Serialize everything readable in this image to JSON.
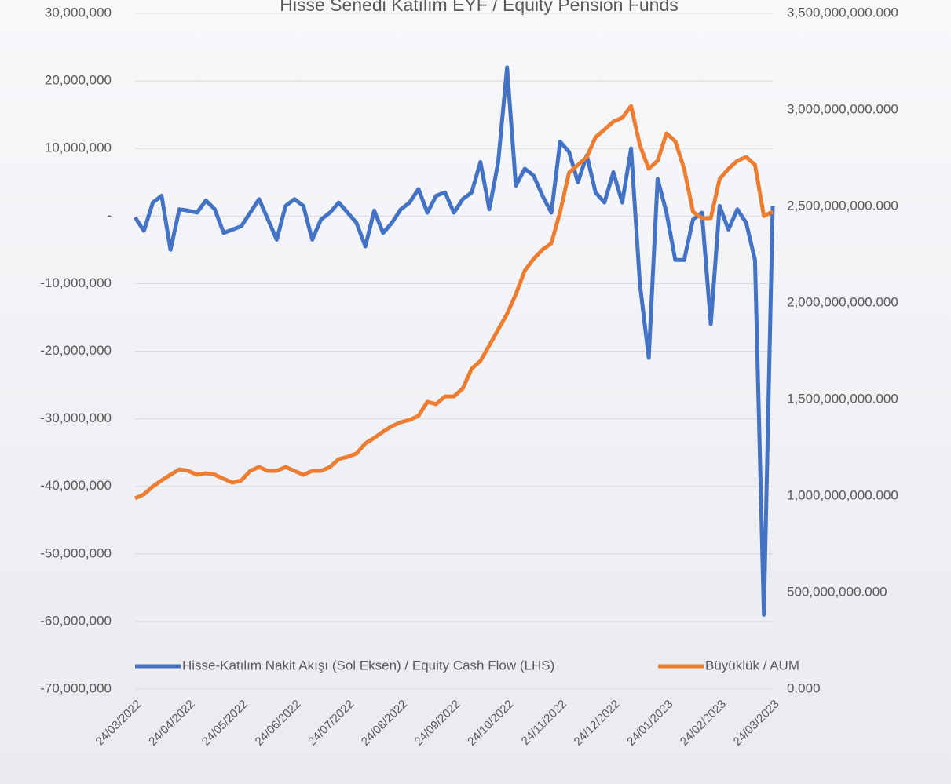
{
  "chart_data": {
    "type": "line",
    "title": "Hisse Senedi Katılım EYF / Equity Pension Funds",
    "categories": [
      "24/03/2022",
      null,
      null,
      null,
      null,
      null,
      "24/04/2022",
      null,
      null,
      null,
      null,
      null,
      "24/05/2022",
      null,
      null,
      null,
      null,
      null,
      "24/06/2022",
      null,
      null,
      null,
      null,
      null,
      "24/07/2022",
      null,
      null,
      null,
      null,
      null,
      "24/08/2022",
      null,
      null,
      null,
      null,
      null,
      "24/09/2022",
      null,
      null,
      null,
      null,
      null,
      "24/10/2022",
      null,
      null,
      null,
      null,
      null,
      "24/11/2022",
      null,
      null,
      null,
      null,
      null,
      "24/12/2022",
      null,
      null,
      null,
      null,
      null,
      "24/01/2023",
      null,
      null,
      null,
      null,
      null,
      "24/02/2023",
      null,
      null,
      null,
      null,
      null,
      "24/03/2023"
    ],
    "series": [
      {
        "name": "Hisse-Katılım Nakit Akışı (Sol Eksen) / Equity Cash Flow (LHS)",
        "color": "#4472c4",
        "axis": "y",
        "values": [
          -200000,
          -2200000,
          2000000,
          3000000,
          -5000000,
          1000000,
          800000,
          500000,
          2300000,
          1000000,
          -2500000,
          -2000000,
          -1500000,
          500000,
          2500000,
          -500000,
          -3500000,
          1500000,
          2500000,
          1500000,
          -3500000,
          -500000,
          500000,
          2000000,
          500000,
          -1000000,
          -4500000,
          800000,
          -2500000,
          -1000000,
          1000000,
          2000000,
          4000000,
          500000,
          3000000,
          3500000,
          500000,
          2500000,
          3500000,
          8000000,
          1000000,
          8000000,
          22000000,
          4500000,
          7000000,
          6000000,
          3000000,
          500000,
          11000000,
          9500000,
          5000000,
          9000000,
          3500000,
          2000000,
          6500000,
          2000000,
          10000000,
          -10000000,
          -21000000,
          5500000,
          500000,
          -6500000,
          -6500000,
          -500000,
          500000,
          -16000000,
          1500000,
          -2000000,
          1000000,
          -1000000,
          -6500000,
          -59000000,
          1500000
        ]
      },
      {
        "name": "Büyüklük / AUM",
        "color": "#ed7d31",
        "axis": "y2",
        "values": [
          988000000000,
          1008000000000,
          1049000000000,
          1081000000000,
          1110000000000,
          1138000000000,
          1130000000000,
          1110000000000,
          1118000000000,
          1110000000000,
          1089000000000,
          1069000000000,
          1081000000000,
          1130000000000,
          1150000000000,
          1130000000000,
          1130000000000,
          1150000000000,
          1130000000000,
          1110000000000,
          1130000000000,
          1130000000000,
          1150000000000,
          1191000000000,
          1203000000000,
          1220000000000,
          1272000000000,
          1301000000000,
          1333000000000,
          1362000000000,
          1382000000000,
          1394000000000,
          1415000000000,
          1488000000000,
          1476000000000,
          1516000000000,
          1516000000000,
          1557000000000,
          1659000000000,
          1699000000000,
          1780000000000,
          1862000000000,
          1943000000000,
          2045000000000,
          2167000000000,
          2228000000000,
          2276000000000,
          2309000000000,
          2472000000000,
          2675000000000,
          2715000000000,
          2756000000000,
          2858000000000,
          2898000000000,
          2939000000000,
          2959000000000,
          3020000000000,
          2817000000000,
          2695000000000,
          2736000000000,
          2878000000000,
          2837000000000,
          2695000000000,
          2472000000000,
          2439000000000,
          2439000000000,
          2642000000000,
          2695000000000,
          2736000000000,
          2756000000000,
          2715000000000,
          2451000000000,
          2472000000000
        ]
      }
    ],
    "ylim": [
      -70000000,
      30000000
    ],
    "yticks": [
      {
        "value": -70000000,
        "label": "-70,000,000"
      },
      {
        "value": -60000000,
        "label": "-60,000,000"
      },
      {
        "value": -50000000,
        "label": "-50,000,000"
      },
      {
        "value": -40000000,
        "label": "-40,000,000"
      },
      {
        "value": -30000000,
        "label": "-30,000,000"
      },
      {
        "value": -20000000,
        "label": "-20,000,000"
      },
      {
        "value": -10000000,
        "label": "-10,000,000"
      },
      {
        "value": 0,
        "label": "-"
      },
      {
        "value": 10000000,
        "label": "10,000,000"
      },
      {
        "value": 20000000,
        "label": "20,000,000"
      },
      {
        "value": 30000000,
        "label": "30,000,000"
      }
    ],
    "y2lim": [
      0,
      3500000000000
    ],
    "y2ticks": [
      {
        "value": 0,
        "label": "0.000"
      },
      {
        "value": 500000000000,
        "label": "500,000,000.000"
      },
      {
        "value": 1000000000000,
        "label": "1,000,000,000.000"
      },
      {
        "value": 1500000000000,
        "label": "1,500,000,000.000"
      },
      {
        "value": 2000000000000,
        "label": "2,000,000,000.000"
      },
      {
        "value": 2500000000000,
        "label": "2,500,000,000.000"
      },
      {
        "value": 3000000000000,
        "label": "3,000,000,000.000"
      },
      {
        "value": 3500000000000,
        "label": "3,500,000,000.000"
      }
    ],
    "grid": true,
    "legend": "bottom"
  }
}
